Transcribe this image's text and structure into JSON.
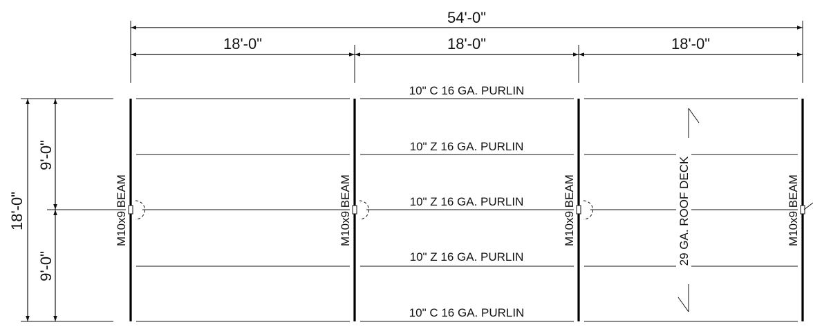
{
  "dimensions": {
    "overall": "54'-0\"",
    "bay1": "18'-0\"",
    "bay2": "18'-0\"",
    "bay3": "18'-0\"",
    "depth_total": "18'-0\"",
    "depth_top": "9'-0\"",
    "depth_bottom": "9'-0\""
  },
  "purlins": [
    "10\" C 16 GA. PURLIN",
    "10\" Z 16 GA. PURLIN",
    "10\" Z 16 GA. PURLIN",
    "10\" Z 16 GA. PURLIN",
    "10\" C 16 GA. PURLIN"
  ],
  "beams": [
    "M10x9 BEAM",
    "M10x9 BEAM",
    "M10x9 BEAM",
    "M10x9 BEAM"
  ],
  "deck_label": "29 GA. ROOF DECK"
}
